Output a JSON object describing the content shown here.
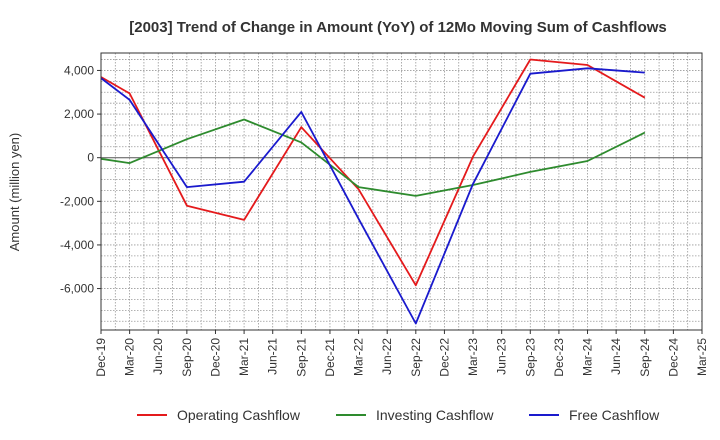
{
  "chart_data": {
    "type": "line",
    "title": "[2003]  Trend of Change in Amount (YoY) of 12Mo Moving Sum of Cashflows",
    "xlabel": "",
    "ylabel": "Amount (million yen)",
    "categories": [
      "Dec-19",
      "Mar-20",
      "Jun-20",
      "Sep-20",
      "Dec-20",
      "Mar-21",
      "Jun-21",
      "Sep-21",
      "Dec-21",
      "Mar-22",
      "Jun-22",
      "Sep-22",
      "Dec-22",
      "Mar-23",
      "Jun-23",
      "Sep-23",
      "Dec-23",
      "Mar-24",
      "Jun-24",
      "Sep-24",
      "Dec-24",
      "Mar-25"
    ],
    "ylim": [
      -7900,
      4800
    ],
    "yticks": [
      4000,
      2000,
      0,
      -2000,
      -4000,
      -6000
    ],
    "ytick_labels": [
      "4,000",
      "2,000",
      "0",
      "-2,000",
      "-4,000",
      "-6,000"
    ],
    "grid": true,
    "legend_position": "bottom",
    "series": [
      {
        "name": "Operating Cashflow",
        "color": "#e41a1c",
        "values": [
          3700,
          2950,
          null,
          -2200,
          null,
          -2850,
          null,
          1400,
          null,
          -1450,
          null,
          -5850,
          null,
          50,
          null,
          4500,
          null,
          4250,
          null,
          2750,
          null,
          null
        ]
      },
      {
        "name": "Investing Cashflow",
        "color": "#2e8b2e",
        "values": [
          -50,
          -250,
          null,
          850,
          null,
          1750,
          null,
          700,
          null,
          -1350,
          null,
          -1750,
          null,
          -1250,
          null,
          -650,
          null,
          -150,
          null,
          1150,
          null,
          null
        ]
      },
      {
        "name": "Free Cashflow",
        "color": "#1a1acd",
        "values": [
          3650,
          2650,
          null,
          -1350,
          null,
          -1100,
          null,
          2100,
          null,
          -2800,
          null,
          -7600,
          null,
          -1200,
          null,
          3850,
          null,
          4100,
          null,
          3900,
          null,
          null
        ]
      }
    ]
  }
}
